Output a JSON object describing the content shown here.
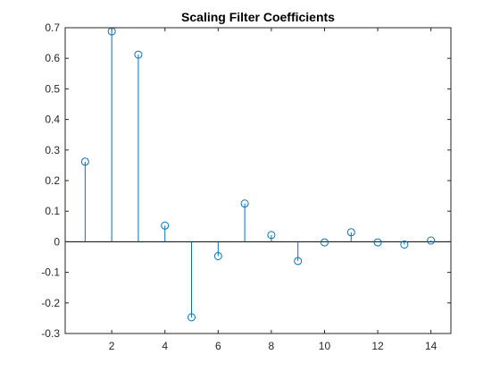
{
  "chart_data": {
    "type": "stem",
    "title": "Scaling Filter Coefficients",
    "xlabel": "",
    "ylabel": "",
    "xlim": [
      0.25,
      14.75
    ],
    "ylim": [
      -0.3,
      0.7
    ],
    "xticks": [
      2,
      4,
      6,
      8,
      10,
      12,
      14
    ],
    "xtick_labels": [
      "2",
      "4",
      "6",
      "8",
      "10",
      "12",
      "14"
    ],
    "yticks": [
      -0.3,
      -0.2,
      -0.1,
      0,
      0.1,
      0.2,
      0.3,
      0.4,
      0.5,
      0.6,
      0.7
    ],
    "ytick_labels": [
      "-0.3",
      "-0.2",
      "-0.1",
      "0",
      "0.1",
      "0.2",
      "0.3",
      "0.4",
      "0.5",
      "0.6",
      "0.7"
    ],
    "x": [
      1,
      2,
      3,
      4,
      5,
      6,
      7,
      8,
      9,
      10,
      11,
      12,
      13,
      14
    ],
    "y": [
      0.262,
      0.688,
      0.612,
      0.053,
      -0.247,
      -0.047,
      0.125,
      0.022,
      -0.063,
      -0.002,
      0.031,
      -0.002,
      -0.009,
      0.004
    ],
    "grid": false,
    "marker": "circle",
    "colors": {
      "stem": "#0072BD",
      "axes": "#262626",
      "background": "#ffffff"
    }
  }
}
